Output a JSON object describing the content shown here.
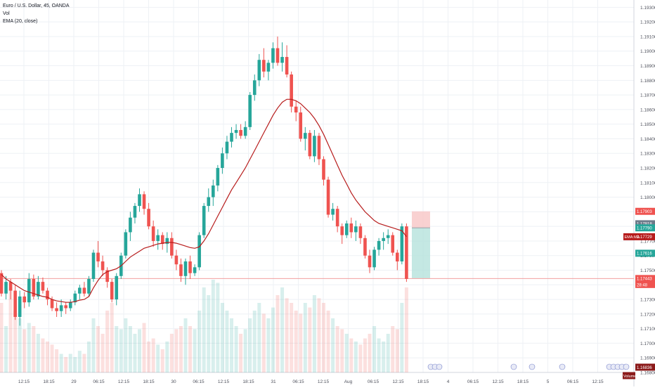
{
  "legend": {
    "symbol": "Euro / U.S. Dollar, 45, OANDA",
    "vol": "Vol",
    "ema": "EMA (20, close)"
  },
  "colors": {
    "up": "#26a69a",
    "down": "#ef5350",
    "ema": "#b71c1c",
    "grid": "#eef1f5",
    "axis_text": "#50535e",
    "price_line": "#f2a0a0",
    "position_stop": "#f7c5c5",
    "position_target": "#b5e2dc"
  },
  "chart_data": {
    "type": "candlestick",
    "title": "Euro / U.S. Dollar, 45, OANDA",
    "y_ticks": [
      "1.19300",
      "1.19200",
      "1.19100",
      "1.19000",
      "1.18900",
      "1.18800",
      "1.18700",
      "1.18600",
      "1.18500",
      "1.18400",
      "1.18300",
      "1.18200",
      "1.18100",
      "1.18000",
      "1.17900",
      "1.17800",
      "1.17700",
      "1.17600",
      "1.17500",
      "1.17400",
      "1.17300",
      "1.17200",
      "1.17100",
      "1.17000",
      "1.16900",
      "1.16800"
    ],
    "x_ticks": [
      "12:15",
      "18:15",
      "29",
      "06:15",
      "12:15",
      "18:15",
      "30",
      "06:15",
      "12:15",
      "18:15",
      "31",
      "06:15",
      "12:15",
      "Aug",
      "06:15",
      "12:15",
      "18:15",
      "4",
      "06:15",
      "12:15",
      "18:15",
      "5",
      "06:15",
      "12:15"
    ],
    "ylim": [
      1.168,
      1.1935
    ],
    "candles": [
      [
        1.1748,
        1.175,
        1.1732,
        1.1734
      ],
      [
        1.1734,
        1.1746,
        1.173,
        1.1742
      ],
      [
        1.1742,
        1.1744,
        1.173,
        1.1736
      ],
      [
        1.1736,
        1.174,
        1.1716,
        1.1718
      ],
      [
        1.1718,
        1.1736,
        1.1712,
        1.1732
      ],
      [
        1.1732,
        1.1735,
        1.1724,
        1.1728
      ],
      [
        1.1728,
        1.1748,
        1.1725,
        1.1744
      ],
      [
        1.1744,
        1.1747,
        1.173,
        1.1732
      ],
      [
        1.1732,
        1.1746,
        1.173,
        1.1742
      ],
      [
        1.1742,
        1.1745,
        1.1734,
        1.1736
      ],
      [
        1.1736,
        1.1738,
        1.1726,
        1.173
      ],
      [
        1.173,
        1.1732,
        1.1722,
        1.1724
      ],
      [
        1.1724,
        1.1728,
        1.1718,
        1.1722
      ],
      [
        1.1722,
        1.173,
        1.1718,
        1.1726
      ],
      [
        1.1726,
        1.1728,
        1.172,
        1.1724
      ],
      [
        1.1724,
        1.173,
        1.1722,
        1.1728
      ],
      [
        1.1728,
        1.1736,
        1.1726,
        1.1734
      ],
      [
        1.1734,
        1.174,
        1.173,
        1.1738
      ],
      [
        1.1738,
        1.1742,
        1.1732,
        1.1734
      ],
      [
        1.1734,
        1.1746,
        1.1732,
        1.1744
      ],
      [
        1.1744,
        1.1764,
        1.1742,
        1.1762
      ],
      [
        1.1762,
        1.177,
        1.1752,
        1.1756
      ],
      [
        1.1756,
        1.176,
        1.1746,
        1.175
      ],
      [
        1.175,
        1.1752,
        1.1738,
        1.1742
      ],
      [
        1.1742,
        1.1744,
        1.1728,
        1.173
      ],
      [
        1.173,
        1.1748,
        1.1726,
        1.1746
      ],
      [
        1.1746,
        1.1762,
        1.1744,
        1.176
      ],
      [
        1.176,
        1.1778,
        1.1758,
        1.1776
      ],
      [
        1.1776,
        1.179,
        1.177,
        1.1786
      ],
      [
        1.1786,
        1.1796,
        1.1782,
        1.1794
      ],
      [
        1.1794,
        1.1806,
        1.179,
        1.1802
      ],
      [
        1.1802,
        1.1804,
        1.1788,
        1.1792
      ],
      [
        1.1792,
        1.1796,
        1.1778,
        1.178
      ],
      [
        1.178,
        1.1784,
        1.1766,
        1.177
      ],
      [
        1.177,
        1.1778,
        1.1764,
        1.1774
      ],
      [
        1.1774,
        1.1776,
        1.1764,
        1.1768
      ],
      [
        1.1768,
        1.1776,
        1.1762,
        1.1772
      ],
      [
        1.1772,
        1.1776,
        1.1758,
        1.176
      ],
      [
        1.176,
        1.1764,
        1.175,
        1.1754
      ],
      [
        1.1754,
        1.1758,
        1.1742,
        1.1746
      ],
      [
        1.1746,
        1.1758,
        1.174,
        1.1756
      ],
      [
        1.1756,
        1.176,
        1.1744,
        1.1748
      ],
      [
        1.1748,
        1.1754,
        1.1746,
        1.1752
      ],
      [
        1.1752,
        1.1776,
        1.175,
        1.1774
      ],
      [
        1.1774,
        1.1796,
        1.1772,
        1.1794
      ],
      [
        1.1794,
        1.1806,
        1.179,
        1.18
      ],
      [
        1.18,
        1.1812,
        1.1794,
        1.1808
      ],
      [
        1.1808,
        1.1822,
        1.1804,
        1.182
      ],
      [
        1.182,
        1.1834,
        1.1816,
        1.183
      ],
      [
        1.183,
        1.1842,
        1.1826,
        1.1838
      ],
      [
        1.1838,
        1.1848,
        1.1834,
        1.1844
      ],
      [
        1.1844,
        1.185,
        1.184,
        1.1846
      ],
      [
        1.1846,
        1.185,
        1.184,
        1.1842
      ],
      [
        1.1842,
        1.1852,
        1.184,
        1.1848
      ],
      [
        1.1848,
        1.1872,
        1.1846,
        1.187
      ],
      [
        1.187,
        1.1884,
        1.1866,
        1.188
      ],
      [
        1.188,
        1.1898,
        1.1876,
        1.1894
      ],
      [
        1.1894,
        1.1902,
        1.1882,
        1.1886
      ],
      [
        1.1886,
        1.1894,
        1.188,
        1.1892
      ],
      [
        1.1892,
        1.1906,
        1.1888,
        1.1902
      ],
      [
        1.1902,
        1.191,
        1.189,
        1.1892
      ],
      [
        1.1892,
        1.1906,
        1.1886,
        1.1896
      ],
      [
        1.1896,
        1.1904,
        1.1882,
        1.1884
      ],
      [
        1.1884,
        1.1886,
        1.1858,
        1.1862
      ],
      [
        1.1862,
        1.1866,
        1.1852,
        1.1858
      ],
      [
        1.1858,
        1.1862,
        1.1838,
        1.184
      ],
      [
        1.184,
        1.1848,
        1.1832,
        1.1844
      ],
      [
        1.1844,
        1.1846,
        1.1826,
        1.1828
      ],
      [
        1.1828,
        1.1846,
        1.1824,
        1.1842
      ],
      [
        1.1842,
        1.1844,
        1.1822,
        1.1826
      ],
      [
        1.1826,
        1.1828,
        1.1808,
        1.1812
      ],
      [
        1.1812,
        1.1814,
        1.1786,
        1.1788
      ],
      [
        1.1788,
        1.1796,
        1.1784,
        1.1792
      ],
      [
        1.1792,
        1.1794,
        1.1776,
        1.178
      ],
      [
        1.178,
        1.1782,
        1.1768,
        1.1774
      ],
      [
        1.1774,
        1.1784,
        1.1772,
        1.1782
      ],
      [
        1.1782,
        1.1786,
        1.1772,
        1.1776
      ],
      [
        1.1776,
        1.1784,
        1.177,
        1.178
      ],
      [
        1.178,
        1.1782,
        1.1768,
        1.1772
      ],
      [
        1.1772,
        1.1774,
        1.1758,
        1.176
      ],
      [
        1.176,
        1.1764,
        1.1748,
        1.1752
      ],
      [
        1.1752,
        1.1766,
        1.175,
        1.1764
      ],
      [
        1.1764,
        1.1772,
        1.176,
        1.177
      ],
      [
        1.177,
        1.1776,
        1.1764,
        1.1772
      ],
      [
        1.1772,
        1.1778,
        1.1768,
        1.1774
      ],
      [
        1.1774,
        1.1776,
        1.176,
        1.1762
      ],
      [
        1.1762,
        1.1764,
        1.175,
        1.1756
      ],
      [
        1.1756,
        1.1782,
        1.1754,
        1.178
      ],
      [
        1.178,
        1.1782,
        1.1742,
        1.1744
      ]
    ],
    "ema": [
      1.1747,
      1.1744,
      1.1742,
      1.174,
      1.1738,
      1.1736,
      1.1735,
      1.1734,
      1.1733,
      1.1732,
      1.17315,
      1.173,
      1.1729,
      1.17285,
      1.1728,
      1.1728,
      1.17285,
      1.17295,
      1.173,
      1.1732,
      1.1738,
      1.1743,
      1.1747,
      1.1749,
      1.175,
      1.1751,
      1.1753,
      1.1756,
      1.1759,
      1.1761,
      1.1763,
      1.1765,
      1.1766,
      1.1767,
      1.1768,
      1.17685,
      1.1769,
      1.1769,
      1.17685,
      1.17675,
      1.17665,
      1.17655,
      1.1765,
      1.1766,
      1.177,
      1.1775,
      1.1781,
      1.1787,
      1.1793,
      1.1799,
      1.1805,
      1.181,
      1.1815,
      1.182,
      1.1826,
      1.1832,
      1.1838,
      1.1844,
      1.185,
      1.1856,
      1.1861,
      1.1865,
      1.1867,
      1.1867,
      1.1866,
      1.1864,
      1.1861,
      1.1858,
      1.1854,
      1.1849,
      1.1843,
      1.1836,
      1.1829,
      1.1822,
      1.1815,
      1.1809,
      1.1803,
      1.1798,
      1.1794,
      1.179,
      1.1787,
      1.1784,
      1.1782,
      1.1781,
      1.178,
      1.1779,
      1.1778,
      1.1777,
      1.1773
    ],
    "volumes": [
      0.45,
      0.3,
      0.55,
      0.4,
      0.35,
      0.28,
      0.32,
      0.3,
      0.25,
      0.22,
      0.2,
      0.18,
      0.15,
      0.12,
      0.1,
      0.12,
      0.1,
      0.14,
      0.12,
      0.2,
      0.35,
      0.3,
      0.25,
      0.4,
      0.45,
      0.3,
      0.28,
      0.35,
      0.3,
      0.25,
      0.28,
      0.32,
      0.2,
      0.22,
      0.18,
      0.15,
      0.2,
      0.25,
      0.28,
      0.3,
      0.35,
      0.3,
      0.28,
      0.4,
      0.55,
      0.5,
      0.6,
      0.58,
      0.45,
      0.4,
      0.35,
      0.3,
      0.25,
      0.28,
      0.35,
      0.4,
      0.45,
      0.38,
      0.35,
      0.42,
      0.5,
      0.55,
      0.48,
      0.45,
      0.4,
      0.38,
      0.45,
      0.42,
      0.5,
      0.48,
      0.45,
      0.4,
      0.35,
      0.3,
      0.28,
      0.25,
      0.22,
      0.2,
      0.18,
      0.22,
      0.25,
      0.3,
      0.22,
      0.2,
      0.25,
      0.3,
      0.28,
      0.45,
      0.55
    ],
    "price_labels": [
      {
        "text": "1.17903",
        "color": "#ef5350",
        "value": 1.17903
      },
      {
        "text": "1.17818",
        "color": "#6c7a89",
        "value": 1.17818
      },
      {
        "text": "1.17790",
        "color": "#26a69a",
        "value": 1.1779
      },
      {
        "text": "1.17729",
        "color": "#b71c1c",
        "value": 1.17729
      },
      {
        "text": "1.17616",
        "color": "#26a69a",
        "value": 1.17616
      },
      {
        "text": "1.17443",
        "color": "#ef5350",
        "value": 1.17443
      },
      {
        "text": "1.16836",
        "color": "#8b1a1a",
        "value": 1.16836
      }
    ],
    "tag_ema": "EMA:MA",
    "tag_countdown": "28:48",
    "tag_volume": "Volume",
    "position": {
      "entry": 1.1779,
      "stop": 1.17903,
      "target": 1.17443
    }
  }
}
